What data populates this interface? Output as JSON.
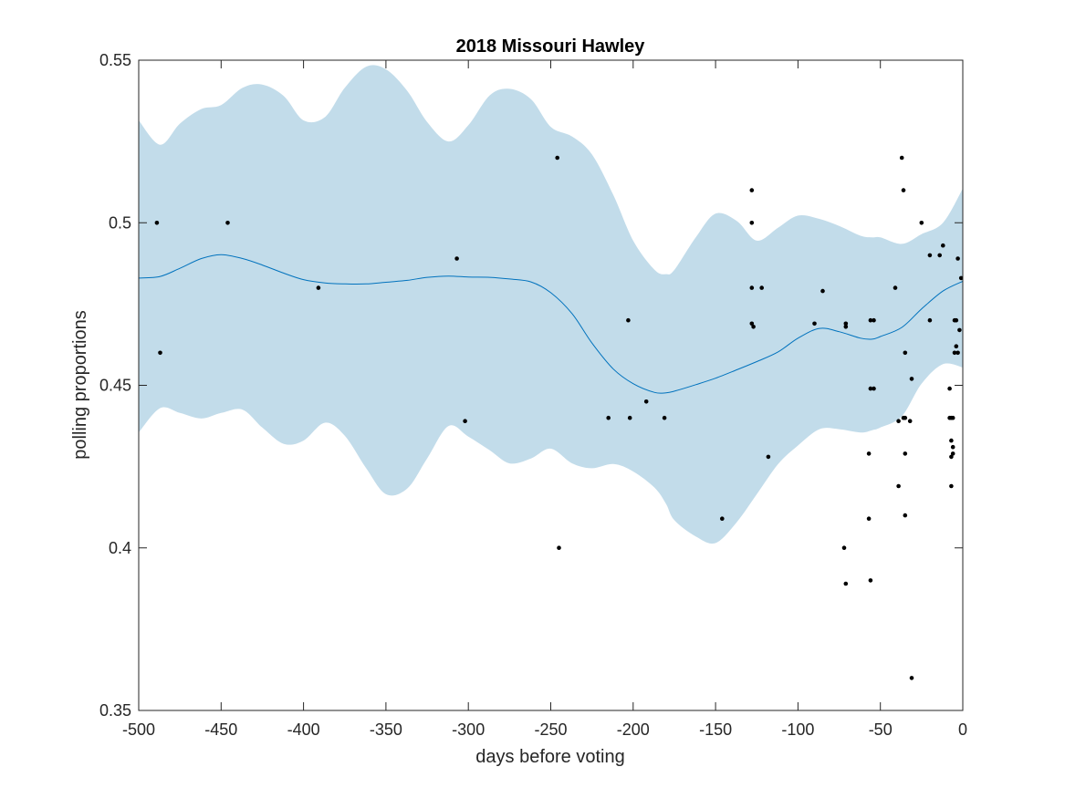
{
  "chart_data": {
    "type": "line",
    "title": "2018 Missouri Hawley",
    "xlabel": "days before voting",
    "ylabel": "polling proportions",
    "xlim": [
      -500,
      0
    ],
    "ylim": [
      0.35,
      0.55
    ],
    "xticks": [
      -500,
      -450,
      -400,
      -350,
      -300,
      -250,
      -200,
      -150,
      -100,
      -50,
      0
    ],
    "xtick_labels": [
      "-500",
      "-450",
      "-400",
      "-350",
      "-300",
      "-250",
      "-200",
      "-150",
      "-100",
      "-50",
      "0"
    ],
    "yticks": [
      0.35,
      0.4,
      0.45,
      0.5,
      0.55
    ],
    "ytick_labels": [
      "0.35",
      "0.4",
      "0.45",
      "0.5",
      "0.55"
    ],
    "grid": false,
    "colors": {
      "band": "#c2dcea",
      "line": "#0072bd",
      "points": "#000000",
      "axes": "#262626"
    },
    "mean": {
      "x": [
        -500,
        -487,
        -475,
        -462,
        -450,
        -437,
        -425,
        -412,
        -400,
        -387,
        -375,
        -362,
        -350,
        -337,
        -325,
        -312,
        -300,
        -287,
        -275,
        -262,
        -250,
        -237,
        -225,
        -212,
        -200,
        -187,
        -180,
        -175,
        -162,
        -150,
        -137,
        -125,
        -112,
        -100,
        -87,
        -75,
        -62,
        -55,
        -50,
        -37,
        -25,
        -12,
        0
      ],
      "y": [
        0.483,
        0.4835,
        0.486,
        0.489,
        0.4902,
        0.489,
        0.487,
        0.4845,
        0.4825,
        0.4815,
        0.4812,
        0.4812,
        0.4817,
        0.4823,
        0.4832,
        0.4836,
        0.4833,
        0.4832,
        0.4827,
        0.4818,
        0.4785,
        0.472,
        0.463,
        0.455,
        0.4505,
        0.4478,
        0.4477,
        0.4482,
        0.4502,
        0.4522,
        0.4548,
        0.4573,
        0.4603,
        0.4645,
        0.4675,
        0.4665,
        0.4645,
        0.4642,
        0.465,
        0.4678,
        0.4735,
        0.479,
        0.482
      ]
    },
    "band": {
      "x": [
        -500,
        -487,
        -475,
        -462,
        -450,
        -437,
        -425,
        -412,
        -400,
        -387,
        -375,
        -362,
        -350,
        -337,
        -325,
        -312,
        -300,
        -287,
        -275,
        -262,
        -250,
        -237,
        -225,
        -212,
        -200,
        -187,
        -180,
        -175,
        -162,
        -150,
        -137,
        -125,
        -112,
        -100,
        -87,
        -75,
        -62,
        -55,
        -50,
        -37,
        -25,
        -12,
        0
      ],
      "upper": [
        0.5315,
        0.524,
        0.5305,
        0.535,
        0.5362,
        0.5415,
        0.5425,
        0.539,
        0.5315,
        0.5325,
        0.5415,
        0.548,
        0.5472,
        0.5405,
        0.531,
        0.525,
        0.53,
        0.5392,
        0.5412,
        0.538,
        0.5295,
        0.5265,
        0.521,
        0.5085,
        0.4945,
        0.4855,
        0.4842,
        0.4855,
        0.4955,
        0.5028,
        0.5005,
        0.4945,
        0.4985,
        0.5022,
        0.5012,
        0.499,
        0.496,
        0.4955,
        0.4955,
        0.4935,
        0.4965,
        0.5,
        0.5105
      ],
      "lower": [
        0.4355,
        0.443,
        0.4415,
        0.4398,
        0.4415,
        0.4425,
        0.437,
        0.432,
        0.433,
        0.4385,
        0.4345,
        0.4245,
        0.4165,
        0.4183,
        0.4275,
        0.4375,
        0.4342,
        0.43,
        0.426,
        0.4275,
        0.4305,
        0.426,
        0.4245,
        0.4258,
        0.4235,
        0.4185,
        0.4135,
        0.4085,
        0.4035,
        0.4015,
        0.408,
        0.4165,
        0.4258,
        0.4315,
        0.4365,
        0.4365,
        0.4355,
        0.4362,
        0.437,
        0.4405,
        0.4505,
        0.4565,
        0.4555
      ]
    },
    "points": {
      "x": [
        -489,
        -487,
        -446,
        -391,
        -307,
        -302,
        -246,
        -245,
        -215,
        -203,
        -202,
        -192,
        -181,
        -146,
        -128,
        -128,
        -128,
        -128,
        -127,
        -122,
        -118,
        -90,
        -85,
        -72,
        -71,
        -71,
        -71,
        -57,
        -57,
        -56,
        -56,
        -56,
        -54,
        -54,
        -41,
        -39,
        -39,
        -37,
        -36,
        -36,
        -35,
        -35,
        -35,
        -35,
        -32,
        -31,
        -25,
        -20,
        -20,
        -14,
        -12,
        -8,
        -8,
        -7,
        -7,
        -7,
        -7,
        -6,
        -6,
        -6,
        -5,
        -5,
        -4,
        -4,
        -3,
        -3,
        -2,
        -1
      ],
      "y": [
        0.5,
        0.46,
        0.5,
        0.48,
        0.489,
        0.439,
        0.52,
        0.4,
        0.44,
        0.47,
        0.44,
        0.445,
        0.44,
        0.409,
        0.51,
        0.5,
        0.48,
        0.469,
        0.468,
        0.48,
        0.428,
        0.469,
        0.479,
        0.4,
        0.389,
        0.468,
        0.469,
        0.429,
        0.409,
        0.39,
        0.449,
        0.47,
        0.449,
        0.47,
        0.48,
        0.419,
        0.439,
        0.52,
        0.51,
        0.44,
        0.46,
        0.429,
        0.41,
        0.44,
        0.439,
        0.452,
        0.5,
        0.49,
        0.47,
        0.49,
        0.493,
        0.449,
        0.44,
        0.419,
        0.428,
        0.44,
        0.433,
        0.431,
        0.44,
        0.429,
        0.47,
        0.46,
        0.47,
        0.462,
        0.489,
        0.46,
        0.467,
        0.483
      ]
    },
    "outlier_point": {
      "x": -31,
      "y": 0.36
    }
  }
}
